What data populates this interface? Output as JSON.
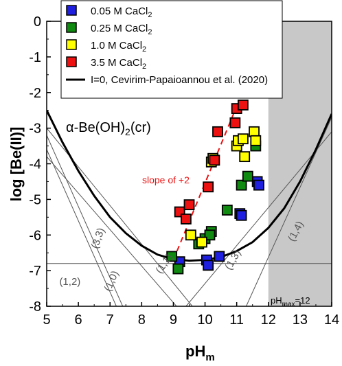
{
  "chart_data": {
    "type": "scatter",
    "xlabel": "pH",
    "xlabel_sub": "m",
    "ylabel": "log [Be(II)]",
    "xlim": [
      5,
      14
    ],
    "ylim": [
      -8,
      0
    ],
    "x_ticks": [
      "5",
      "6",
      "7",
      "8",
      "9",
      "10",
      "11",
      "12",
      "13",
      "14"
    ],
    "y_ticks": [
      "0",
      "-1",
      "-2",
      "-3",
      "-4",
      "-5",
      "-6",
      "-7",
      "-8"
    ],
    "series": [
      {
        "name": "0.05 M CaCl",
        "name_sub": "2",
        "color": "#1f1fe0",
        "points": [
          [
            9.2,
            -6.75
          ],
          [
            10.05,
            -6.7
          ],
          [
            10.1,
            -6.85
          ],
          [
            10.45,
            -6.6
          ],
          [
            11.1,
            -5.4
          ],
          [
            11.15,
            -5.45
          ],
          [
            11.65,
            -4.5
          ],
          [
            11.7,
            -4.6
          ]
        ]
      },
      {
        "name": "0.25 M CaCl",
        "name_sub": "2",
        "color": "#108a10",
        "points": [
          [
            8.95,
            -6.6
          ],
          [
            9.15,
            -6.95
          ],
          [
            9.8,
            -6.25
          ],
          [
            10.0,
            -6.1
          ],
          [
            10.2,
            -5.9
          ],
          [
            10.15,
            -6.0
          ],
          [
            10.7,
            -5.3
          ],
          [
            11.15,
            -4.6
          ],
          [
            11.35,
            -4.35
          ],
          [
            11.6,
            -3.5
          ]
        ]
      },
      {
        "name": "1.0 M CaCl",
        "name_sub": "2",
        "color": "#ffff00",
        "points": [
          [
            9.55,
            -6.0
          ],
          [
            9.9,
            -6.2
          ],
          [
            10.2,
            -3.95
          ],
          [
            10.25,
            -3.85
          ],
          [
            11.0,
            -3.5
          ],
          [
            11.05,
            -3.35
          ],
          [
            11.2,
            -3.3
          ],
          [
            11.25,
            -3.8
          ],
          [
            11.55,
            -3.1
          ],
          [
            11.6,
            -3.35
          ]
        ]
      },
      {
        "name": "3.5 M CaCl",
        "name_sub": "2",
        "color": "#ee1111",
        "points": [
          [
            9.2,
            -5.35
          ],
          [
            9.4,
            -5.55
          ],
          [
            9.5,
            -5.15
          ],
          [
            10.1,
            -4.65
          ],
          [
            10.3,
            -3.9
          ],
          [
            10.4,
            -3.1
          ],
          [
            10.95,
            -2.85
          ],
          [
            11.0,
            -2.45
          ],
          [
            11.2,
            -2.35
          ]
        ]
      }
    ],
    "lines": {
      "model_name": "I=0, Cevirim-Papaioannou et al. (2020)",
      "model_curve": [
        [
          5.0,
          -2.5
        ],
        [
          5.5,
          -3.4
        ],
        [
          6.0,
          -4.2
        ],
        [
          6.5,
          -4.9
        ],
        [
          7.0,
          -5.5
        ],
        [
          7.5,
          -5.95
        ],
        [
          8.0,
          -6.3
        ],
        [
          8.5,
          -6.55
        ],
        [
          9.0,
          -6.68
        ],
        [
          9.5,
          -6.72
        ],
        [
          10.0,
          -6.7
        ],
        [
          10.5,
          -6.62
        ],
        [
          11.0,
          -6.45
        ],
        [
          11.5,
          -6.2
        ],
        [
          12.0,
          -5.8
        ],
        [
          12.5,
          -5.25
        ],
        [
          13.0,
          -4.5
        ],
        [
          13.5,
          -3.6
        ],
        [
          14.0,
          -2.6
        ]
      ],
      "species": [
        {
          "label": "(1,2)",
          "points": [
            [
              5.0,
              -3.0
            ],
            [
              9.6,
              -8.0
            ]
          ],
          "label_at": [
            5.4,
            -7.4
          ]
        },
        {
          "label": "(3,3)",
          "points": [
            [
              5.0,
              -3.2
            ],
            [
              7.4,
              -8.0
            ]
          ],
          "label_at": [
            6.6,
            -6.4
          ]
        },
        {
          "label": "(1,0)",
          "points": [
            [
              5.0,
              -3.6
            ],
            [
              7.2,
              -8.0
            ]
          ],
          "label_at": [
            7.0,
            -7.6
          ]
        },
        {
          "label": "(1,1)",
          "points": [
            [
              5.0,
              -3.8
            ],
            [
              9.1,
              -8.0
            ]
          ],
          "label_at": [
            8.6,
            -7.1
          ]
        },
        {
          "label": "(1,3)",
          "points": [
            [
              9.4,
              -8.0
            ],
            [
              14.0,
              -3.1
            ]
          ],
          "label_at": [
            10.8,
            -7.0
          ]
        },
        {
          "label": "(1,4)",
          "points": [
            [
              11.3,
              -8.0
            ],
            [
              14.0,
              -2.7
            ]
          ],
          "label_at": [
            12.8,
            -6.2
          ]
        }
      ],
      "horizontal_y": -6.8
    },
    "annotations": {
      "solid_phase": "α-Be(OH)",
      "solid_phase_sub": "2",
      "solid_phase_suffix": "(cr)",
      "slope_label": "slope of +2",
      "slope_line": [
        [
          9.0,
          -6.7
        ],
        [
          10.9,
          -2.6
        ]
      ],
      "phmax_label": "pH",
      "phmax_sub": "max",
      "phmax_value": "=12",
      "shaded_from_x": 12
    },
    "legend_position": "top",
    "grid": false
  }
}
